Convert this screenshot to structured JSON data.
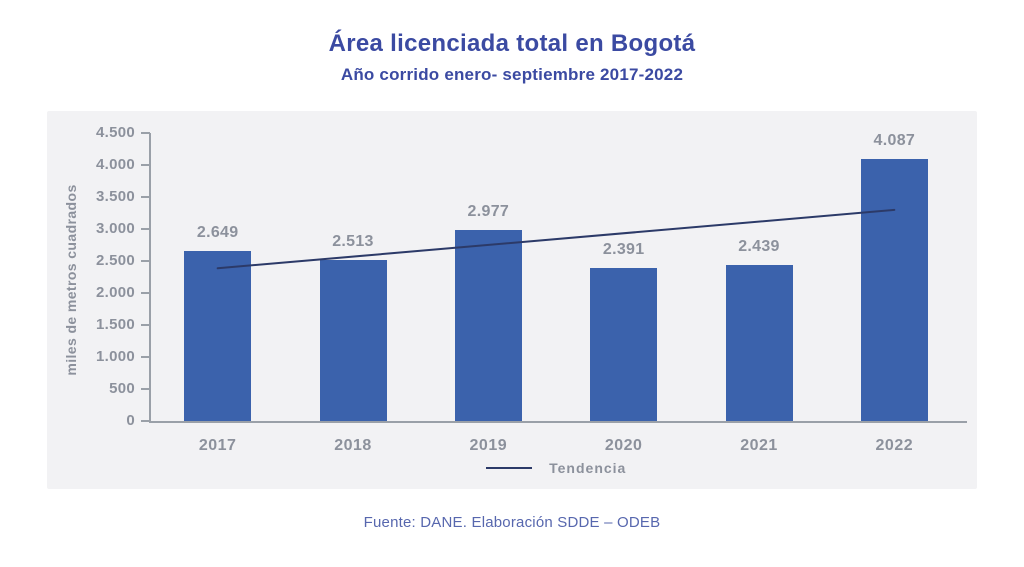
{
  "page": {
    "title": "Área licenciada total en Bogotá",
    "subtitle": "Año corrido enero- septiembre 2017-2022",
    "source": "Fuente: DANE. Elaboración SDDE – ODEB"
  },
  "colors": {
    "title": "#3b4aa2",
    "panel_bg": "#f2f2f4",
    "bar": "#3b62ac",
    "trend": "#2c3a68",
    "label_gray": "#8c919c",
    "axis_line": "#9aa0a8",
    "source_text": "#5767ae"
  },
  "chart_data": {
    "type": "bar",
    "title": "Área licenciada total en Bogotá",
    "subtitle": "Año corrido enero- septiembre 2017-2022",
    "xlabel": "",
    "ylabel": "miles de metros cuadrados",
    "ylim": [
      0,
      4500
    ],
    "ytick_labels": [
      "0",
      "500",
      "1.000",
      "1.500",
      "2.000",
      "2.500",
      "3.000",
      "3.500",
      "4.000",
      "4.500"
    ],
    "categories": [
      "2017",
      "2018",
      "2019",
      "2020",
      "2021",
      "2022"
    ],
    "values": [
      2649,
      2513,
      2977,
      2391,
      2439,
      4087
    ],
    "value_labels": [
      "2.649",
      "2.513",
      "2.977",
      "2.391",
      "2.439",
      "4.087"
    ],
    "trendline": {
      "label": "Tendencia",
      "start_value": 2387,
      "end_value": 3298
    },
    "grid": false,
    "legend_position": "bottom"
  }
}
